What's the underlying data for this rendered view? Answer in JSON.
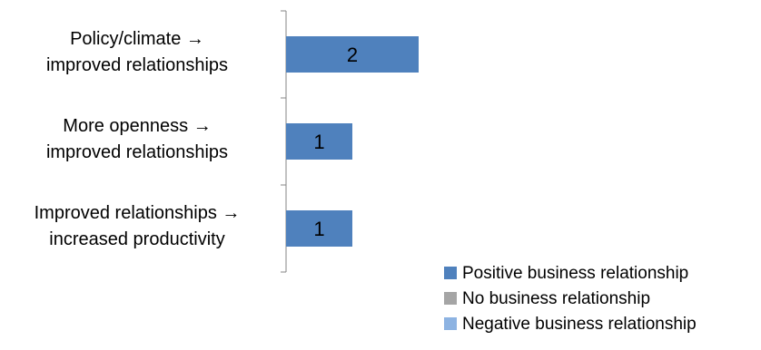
{
  "chart_data": {
    "type": "bar",
    "orientation": "horizontal",
    "categories": [
      "Policy/climate → improved relationships",
      "More openness → improved relationships",
      "Improved relationships → increased productivity"
    ],
    "category_lines": [
      [
        "Policy/climate →",
        "improved relationships"
      ],
      [
        "More openness →",
        "improved relationships"
      ],
      [
        "Improved relationships →",
        "increased productivity"
      ]
    ],
    "series": [
      {
        "name": "Positive business relationship",
        "values": [
          2,
          1,
          1
        ],
        "color": "#4f81bd"
      },
      {
        "name": "No business relationship",
        "values": [
          0,
          0,
          0
        ],
        "color": "#a5a5a5"
      },
      {
        "name": "Negative business relationship",
        "values": [
          0,
          0,
          0
        ],
        "color": "#8db3e2"
      }
    ],
    "data_labels": [
      "2",
      "1",
      "1"
    ],
    "xlim": [
      0,
      2
    ],
    "grid": false,
    "legend_position": "bottom-right",
    "title": "",
    "xlabel": "",
    "ylabel": ""
  }
}
